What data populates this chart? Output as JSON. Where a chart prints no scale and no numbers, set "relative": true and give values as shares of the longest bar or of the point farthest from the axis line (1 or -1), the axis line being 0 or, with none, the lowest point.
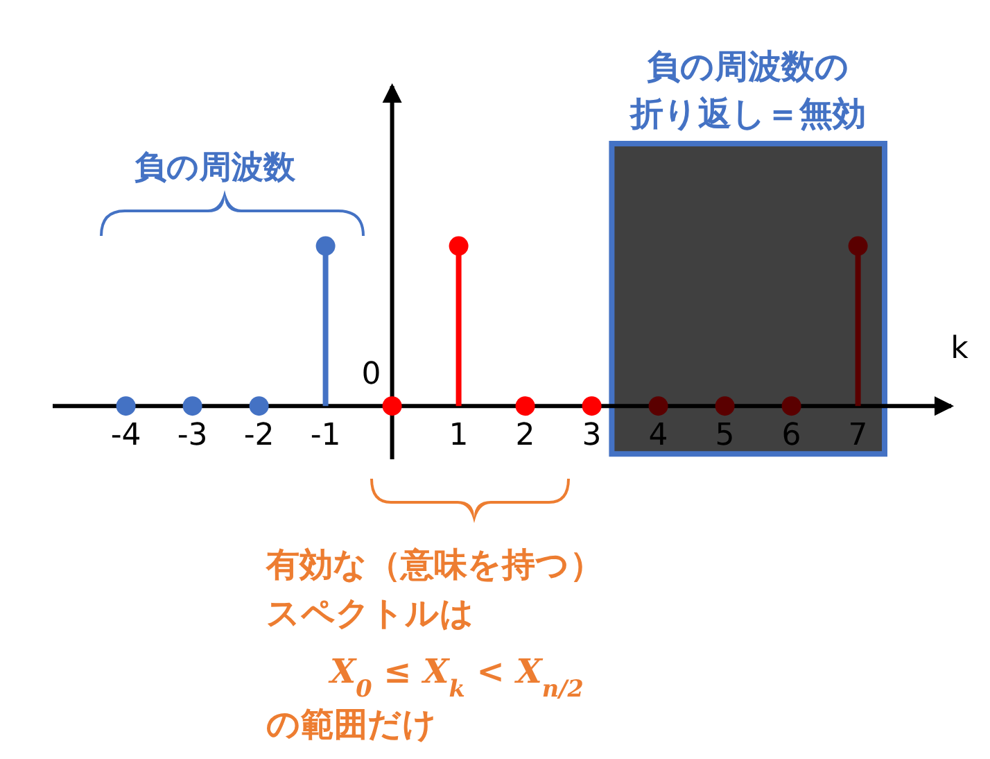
{
  "chart_data": {
    "type": "lollipop",
    "relative": true,
    "xlabel": "k",
    "xlim": [
      -5.1,
      8.4
    ],
    "xticks": [
      -4,
      -3,
      -2,
      -1,
      1,
      2,
      3,
      4,
      5,
      6,
      7
    ],
    "marker": "circle",
    "series": [
      {
        "color": "#4472c4",
        "x": [
          -4,
          -3,
          -2,
          -1
        ],
        "values": [
          0,
          0,
          0,
          1
        ]
      },
      {
        "color": "#ff0000",
        "x": [
          0,
          1,
          2,
          3
        ],
        "values": [
          0,
          1,
          0,
          0
        ]
      },
      {
        "color": "#5a0000",
        "x": [
          4,
          5,
          6,
          7
        ],
        "values": [
          0,
          0,
          0,
          1
        ]
      }
    ],
    "bands": [
      {
        "axis": "x",
        "from": 3.3,
        "to": 7.4,
        "label": "負の周波数の折り返し＝無効",
        "color": "#404040"
      }
    ],
    "annotations": [
      {
        "text": "0",
        "x": 0,
        "y": 0
      },
      "負の周波数",
      "有効な（意味を持つ）",
      "スペクトルは",
      "X$_{0}$ ≤ X$_{k}$ < X$_{n/2}$",
      "の範囲だけ"
    ]
  }
}
